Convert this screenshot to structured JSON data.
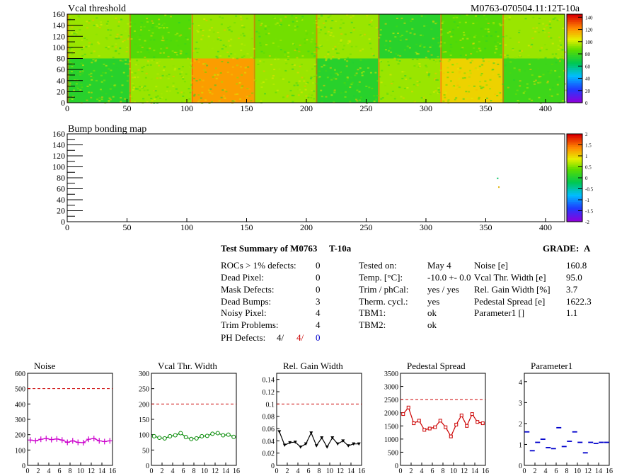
{
  "maps": [
    {
      "title": "Vcal threshold",
      "yticks": [
        0,
        20,
        40,
        60,
        80,
        100,
        120,
        140,
        160
      ],
      "xticks": [
        0,
        50,
        100,
        150,
        200,
        250,
        300,
        350,
        400
      ],
      "palette": {
        "min": 0,
        "max": 145,
        "labels": [
          0,
          20,
          40,
          60,
          80,
          100,
          120,
          140
        ]
      },
      "blocks": [
        {
          "x0": 0,
          "x1": 52,
          "y0": 0,
          "y1": 80,
          "level": 75
        },
        {
          "x0": 52,
          "x1": 104,
          "y0": 0,
          "y1": 80,
          "level": 95
        },
        {
          "x0": 104,
          "x1": 156,
          "y0": 0,
          "y1": 80,
          "level": 120
        },
        {
          "x0": 156,
          "x1": 208,
          "y0": 0,
          "y1": 80,
          "level": 95
        },
        {
          "x0": 208,
          "x1": 260,
          "y0": 0,
          "y1": 80,
          "level": 75
        },
        {
          "x0": 260,
          "x1": 312,
          "y0": 0,
          "y1": 80,
          "level": 95
        },
        {
          "x0": 312,
          "x1": 364,
          "y0": 0,
          "y1": 80,
          "level": 110
        },
        {
          "x0": 364,
          "x1": 416,
          "y0": 0,
          "y1": 80,
          "level": 80
        },
        {
          "x0": 0,
          "x1": 52,
          "y0": 80,
          "y1": 160,
          "level": 95
        },
        {
          "x0": 52,
          "x1": 104,
          "y0": 80,
          "y1": 160,
          "level": 85
        },
        {
          "x0": 104,
          "x1": 156,
          "y0": 80,
          "y1": 160,
          "level": 95
        },
        {
          "x0": 156,
          "x1": 208,
          "y0": 80,
          "y1": 160,
          "level": 90
        },
        {
          "x0": 208,
          "x1": 260,
          "y0": 80,
          "y1": 160,
          "level": 95
        },
        {
          "x0": 260,
          "x1": 312,
          "y0": 80,
          "y1": 160,
          "level": 75
        },
        {
          "x0": 312,
          "x1": 364,
          "y0": 80,
          "y1": 160,
          "level": 85
        },
        {
          "x0": 364,
          "x1": 416,
          "y0": 80,
          "y1": 160,
          "level": 95
        }
      ]
    },
    {
      "title": "Bump bonding map",
      "yticks": [
        0,
        20,
        40,
        60,
        80,
        100,
        120,
        140,
        160
      ],
      "xticks": [
        0,
        50,
        100,
        150,
        200,
        250,
        300,
        350,
        400
      ],
      "palette": {
        "min": -2,
        "max": 2,
        "labels": [
          -2,
          -1.5,
          -1,
          -0.5,
          0,
          0.5,
          1,
          1.5,
          2
        ]
      },
      "points": [
        {
          "x": 360,
          "y": 79
        },
        {
          "x": 361,
          "y": 63
        }
      ]
    }
  ],
  "module_label": "M0763-070504.11:12T-10a",
  "summary": {
    "title": "Test Summary of M0763",
    "subtitle": "T-10a",
    "grade_label": "GRADE:",
    "grade_value": "A",
    "defects": [
      {
        "label": "ROCs > 1% defects:",
        "value": "0"
      },
      {
        "label": "Dead Pixel:",
        "value": "0"
      },
      {
        "label": "Mask Defects:",
        "value": "0"
      },
      {
        "label": "Dead Bumps:",
        "value": "3"
      },
      {
        "label": "Noisy Pixel:",
        "value": "4"
      },
      {
        "label": "Trim Problems:",
        "value": "4"
      }
    ],
    "ph_label": "PH Defects:",
    "ph_values": [
      "4/",
      "4/",
      "0"
    ],
    "info": [
      {
        "label": "Tested on:",
        "value": "May 4"
      },
      {
        "label": "Temp. [°C]:",
        "value": "-10.0 +- 0.0"
      },
      {
        "label": "Trim / phCal:",
        "value": "yes / yes"
      },
      {
        "label": "Therm. cycl.:",
        "value": "yes"
      },
      {
        "label": "TBM1:",
        "value": "ok"
      },
      {
        "label": "TBM2:",
        "value": "ok"
      }
    ],
    "results": [
      {
        "label": "Noise [e]",
        "value": "160.8"
      },
      {
        "label": "Vcal Thr. Width [e]",
        "value": "95.0"
      },
      {
        "label": "Rel. Gain Width [%]",
        "value": "3.7"
      },
      {
        "label": "Pedestal Spread [e]",
        "value": "1622.3"
      },
      {
        "label": "Parameter1 []",
        "value": "1.1"
      }
    ]
  },
  "chart_data": [
    {
      "type": "line",
      "title": "Noise",
      "color": "#cc00cc",
      "marker": "cross",
      "ylim": [
        0,
        600
      ],
      "yticks": [
        0,
        100,
        200,
        300,
        400,
        500,
        600
      ],
      "xticks": [
        0,
        2,
        4,
        6,
        8,
        10,
        12,
        14,
        16
      ],
      "xlim": [
        0,
        16
      ],
      "ref": 500,
      "x": [
        0.5,
        1.5,
        2.5,
        3.5,
        4.5,
        5.5,
        6.5,
        7.5,
        8.5,
        9.5,
        10.5,
        11.5,
        12.5,
        13.5,
        14.5,
        15.5
      ],
      "values": [
        165,
        160,
        170,
        175,
        168,
        172,
        165,
        150,
        160,
        150,
        148,
        170,
        175,
        160,
        155,
        160
      ]
    },
    {
      "type": "line",
      "title": "Vcal Thr. Width",
      "color": "#008800",
      "marker": "circle",
      "ylim": [
        0,
        300
      ],
      "yticks": [
        0,
        50,
        100,
        150,
        200,
        250,
        300
      ],
      "xticks": [
        0,
        2,
        4,
        6,
        8,
        10,
        12,
        14,
        16
      ],
      "xlim": [
        0,
        16
      ],
      "ref": 200,
      "x": [
        0.5,
        1.5,
        2.5,
        3.5,
        4.5,
        5.5,
        6.5,
        7.5,
        8.5,
        9.5,
        10.5,
        11.5,
        12.5,
        13.5,
        14.5,
        15.5
      ],
      "values": [
        95,
        90,
        88,
        95,
        98,
        105,
        92,
        86,
        88,
        95,
        96,
        103,
        105,
        98,
        100,
        93
      ]
    },
    {
      "type": "line",
      "title": "Rel. Gain Width",
      "color": "#000000",
      "marker": "triangle",
      "ylim": [
        0,
        0.15
      ],
      "yticks": [
        0,
        0.02,
        0.04,
        0.06,
        0.08,
        0.1,
        0.12,
        0.14
      ],
      "xticks": [
        0,
        2,
        4,
        6,
        8,
        10,
        12,
        14,
        16
      ],
      "xlim": [
        0,
        16
      ],
      "ref": 0.1,
      "x": [
        0.5,
        1.5,
        2.5,
        3.5,
        4.5,
        5.5,
        6.5,
        7.5,
        8.5,
        9.5,
        10.5,
        11.5,
        12.5,
        13.5,
        14.5,
        15.5
      ],
      "values": [
        0.055,
        0.033,
        0.037,
        0.038,
        0.03,
        0.035,
        0.053,
        0.032,
        0.045,
        0.03,
        0.045,
        0.035,
        0.04,
        0.032,
        0.035,
        0.035
      ]
    },
    {
      "type": "line",
      "title": "Pedestal Spread",
      "color": "#cc0000",
      "marker": "square",
      "ylim": [
        0,
        3500
      ],
      "yticks": [
        0,
        500,
        1000,
        1500,
        2000,
        2500,
        3000,
        3500
      ],
      "xticks": [
        0,
        2,
        4,
        6,
        8,
        10,
        12,
        14,
        16
      ],
      "xlim": [
        0,
        16
      ],
      "ref": 2500,
      "x": [
        0.5,
        1.5,
        2.5,
        3.5,
        4.5,
        5.5,
        6.5,
        7.5,
        8.5,
        9.5,
        10.5,
        11.5,
        12.5,
        13.5,
        14.5,
        15.5
      ],
      "values": [
        1950,
        2200,
        1600,
        1700,
        1350,
        1400,
        1450,
        1700,
        1450,
        1100,
        1550,
        1900,
        1500,
        1950,
        1650,
        1600
      ]
    },
    {
      "type": "scatter",
      "title": "Parameter1",
      "color": "#0000cc",
      "marker": "dash",
      "ylim": [
        0,
        4.4
      ],
      "yticks": [
        0,
        1,
        2,
        3,
        4
      ],
      "xticks": [
        0,
        2,
        4,
        6,
        8,
        10,
        12,
        14,
        16
      ],
      "xlim": [
        0,
        16
      ],
      "x": [
        0.5,
        1.5,
        2.5,
        3.5,
        4.5,
        5.5,
        6.5,
        7.5,
        8.5,
        9.5,
        10.5,
        11.5,
        12.5,
        13.5,
        14.5,
        15.5
      ],
      "values": [
        1.6,
        0.7,
        1.1,
        1.25,
        0.85,
        0.8,
        1.8,
        0.9,
        1.15,
        1.6,
        1.1,
        0.6,
        1.1,
        1.05,
        1.1,
        1.1
      ]
    }
  ]
}
